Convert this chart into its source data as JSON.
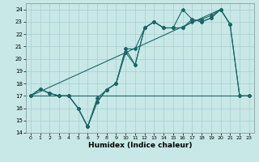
{
  "xlabel": "Humidex (Indice chaleur)",
  "xlim": [
    -0.5,
    23.5
  ],
  "ylim": [
    14,
    24.5
  ],
  "xticks": [
    0,
    1,
    2,
    3,
    4,
    5,
    6,
    7,
    8,
    9,
    10,
    11,
    12,
    13,
    14,
    15,
    16,
    17,
    18,
    19,
    20,
    21,
    22,
    23
  ],
  "yticks": [
    14,
    15,
    16,
    17,
    18,
    19,
    20,
    21,
    22,
    23,
    24
  ],
  "bg_color": "#c8e8e8",
  "grid_color": "#a8cccc",
  "line_color": "#1a6666",
  "line_hline_y": 17,
  "line_hline_x_end": 16,
  "line1_x": [
    0,
    1,
    2,
    3,
    4,
    5,
    6,
    7,
    8,
    9,
    10,
    11,
    12,
    13,
    14,
    15,
    16,
    17,
    18,
    19,
    20,
    21
  ],
  "line1_y": [
    17,
    17.55,
    17.2,
    17,
    17,
    16,
    14.5,
    16.8,
    17.5,
    18.0,
    20.8,
    20.8,
    22.5,
    23.0,
    22.5,
    22.5,
    22.5,
    23.2,
    23.0,
    23.3,
    24.0,
    22.8
  ],
  "line2_x": [
    0,
    1,
    2,
    3,
    4,
    5,
    6,
    7,
    8,
    9,
    10,
    11,
    12,
    13,
    14,
    15,
    16,
    17,
    18,
    19,
    20,
    21,
    22,
    23
  ],
  "line2_y": [
    17,
    17.55,
    17.2,
    17,
    17,
    16,
    14.5,
    16.5,
    17.5,
    18.0,
    20.5,
    19.5,
    22.5,
    23.0,
    22.5,
    22.5,
    22.5,
    23.0,
    23.2,
    23.5,
    24.0,
    22.8,
    17.0,
    17
  ],
  "line3_x": [
    0,
    1,
    2,
    3,
    4,
    5,
    6,
    7,
    8,
    9,
    10,
    11,
    12,
    13,
    14,
    15,
    16,
    17,
    18,
    19,
    20,
    21,
    22,
    23
  ],
  "line3_y": [
    17,
    17.55,
    17.2,
    17,
    17,
    16,
    14.5,
    16.5,
    17.5,
    18.0,
    20.8,
    19.5,
    22.5,
    23.0,
    22.5,
    22.5,
    24.0,
    23.2,
    23.0,
    23.3,
    24.0,
    22.8,
    17.0,
    17
  ],
  "trend_x": [
    0,
    20
  ],
  "trend_y": [
    17,
    24
  ],
  "figsize": [
    3.2,
    2.0
  ],
  "dpi": 100
}
